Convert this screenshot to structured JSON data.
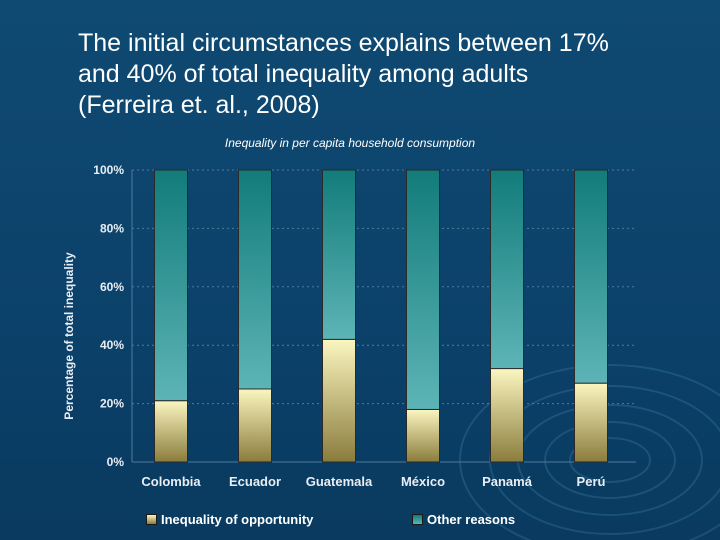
{
  "slide": {
    "title_lines": [
      "The initial circumstances explains between 17%",
      "and 40% of total inequality among adults",
      "(Ferreira et. al., 2008)"
    ]
  },
  "colors": {
    "opportunity": "#e6dc8c",
    "other": "#3a9a9c",
    "axis_text": "#e8eef4",
    "grid": "#4f7a9a"
  },
  "chart_data": {
    "type": "bar",
    "stacked": true,
    "title": "Inequality in per capita household consumption",
    "xlabel": "",
    "ylabel": "Percentage of total inequality",
    "categories": [
      "Colombia",
      "Ecuador",
      "Guatemala",
      "México",
      "Panamá",
      "Perú"
    ],
    "series": [
      {
        "name": "Inequality of opportunity",
        "values": [
          21,
          25,
          42,
          18,
          32,
          27
        ]
      },
      {
        "name": "Other reasons",
        "values": [
          79,
          75,
          58,
          82,
          68,
          73
        ]
      }
    ],
    "ylim": [
      0,
      100
    ],
    "yticks": [
      "0%",
      "20%",
      "40%",
      "60%",
      "80%",
      "100%"
    ],
    "grid": true,
    "legend_position": "bottom"
  }
}
